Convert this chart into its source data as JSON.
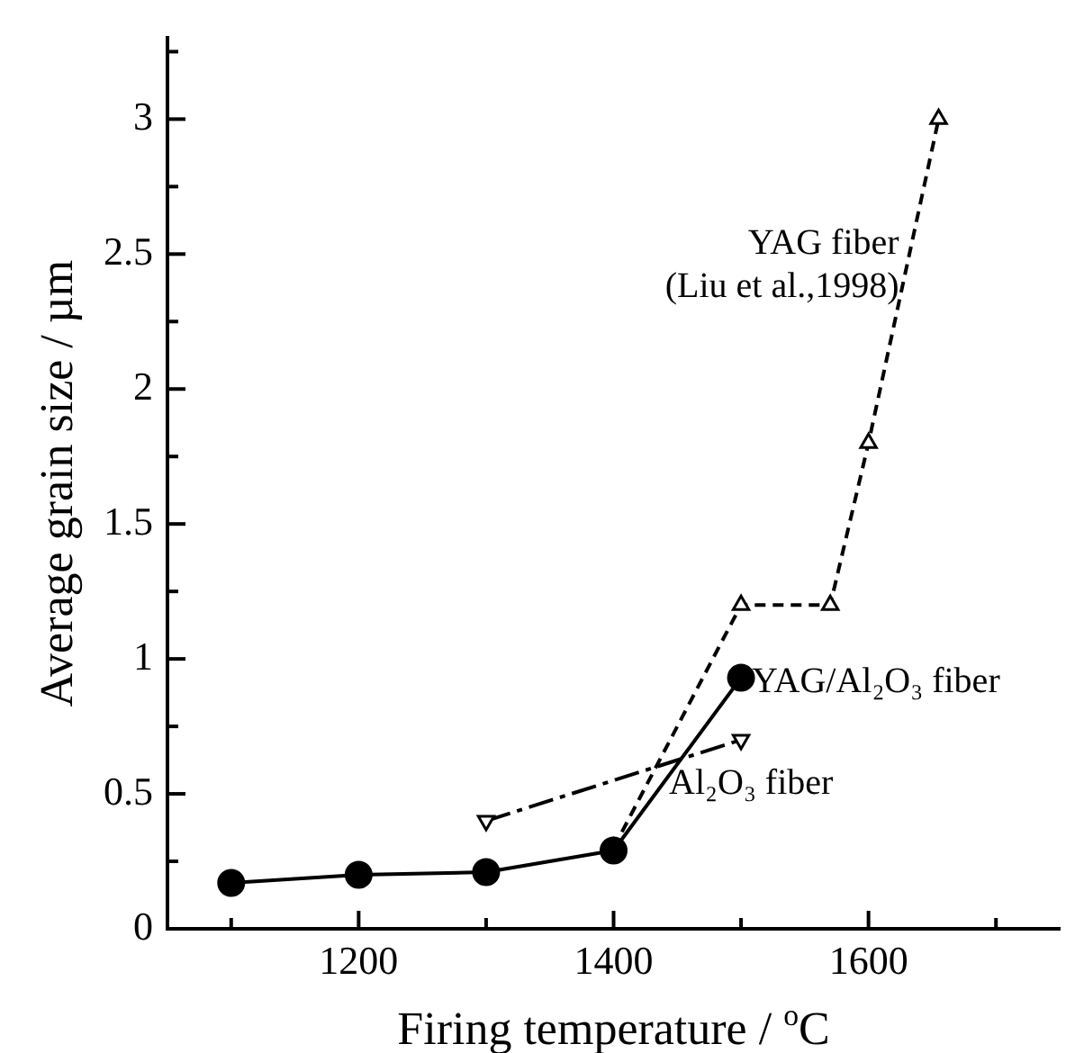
{
  "chart_data": {
    "type": "line",
    "xlabel": "Firing temperature / $^{o}$C",
    "ylabel": "Average grain size / µm",
    "xlim": [
      1050,
      1750
    ],
    "xticks": [
      {
        "value": 1100,
        "label": null
      },
      1200,
      {
        "value": 1300,
        "label": null
      },
      1400,
      {
        "value": 1500,
        "label": null
      },
      1600,
      {
        "value": 1700,
        "label": null
      }
    ],
    "ylim": [
      0,
      3.3
    ],
    "yticks": [
      0,
      {
        "value": 0.25,
        "label": null
      },
      0.5,
      {
        "value": 0.75,
        "label": null
      },
      1,
      {
        "value": 1.25,
        "label": null
      },
      1.5,
      {
        "value": 1.75,
        "label": null
      },
      2,
      {
        "value": 2.25,
        "label": null
      },
      2.5,
      {
        "value": 2.75,
        "label": null
      },
      3,
      {
        "value": 3.25,
        "label": null
      }
    ],
    "grid": false,
    "legend": false,
    "series": [
      {
        "name": "YAG/Al₂O₃ fiber",
        "color": "#000000",
        "x": [
          1100,
          1200,
          1300,
          1400,
          1500
        ],
        "values": [
          0.17,
          0.2,
          0.21,
          0.29,
          0.93
        ],
        "marker": "circle",
        "line_style": "solid"
      },
      {
        "name": "Al₂O₃ fiber",
        "color": "#000000",
        "x": [
          1300,
          1500
        ],
        "values": [
          0.4,
          0.7
        ],
        "marker": "triangle",
        "line_style": "dashed"
      },
      {
        "name": "YAG fiber",
        "color": "#000000",
        "x": [
          1400,
          1500,
          1570,
          1600,
          1655
        ],
        "values": [
          0.3,
          1.2,
          1.2,
          1.8,
          3.0
        ],
        "marker": "triangle",
        "line_style": "dashed"
      }
    ],
    "annotations": [
      "(Liu et al.,1998)"
    ]
  }
}
